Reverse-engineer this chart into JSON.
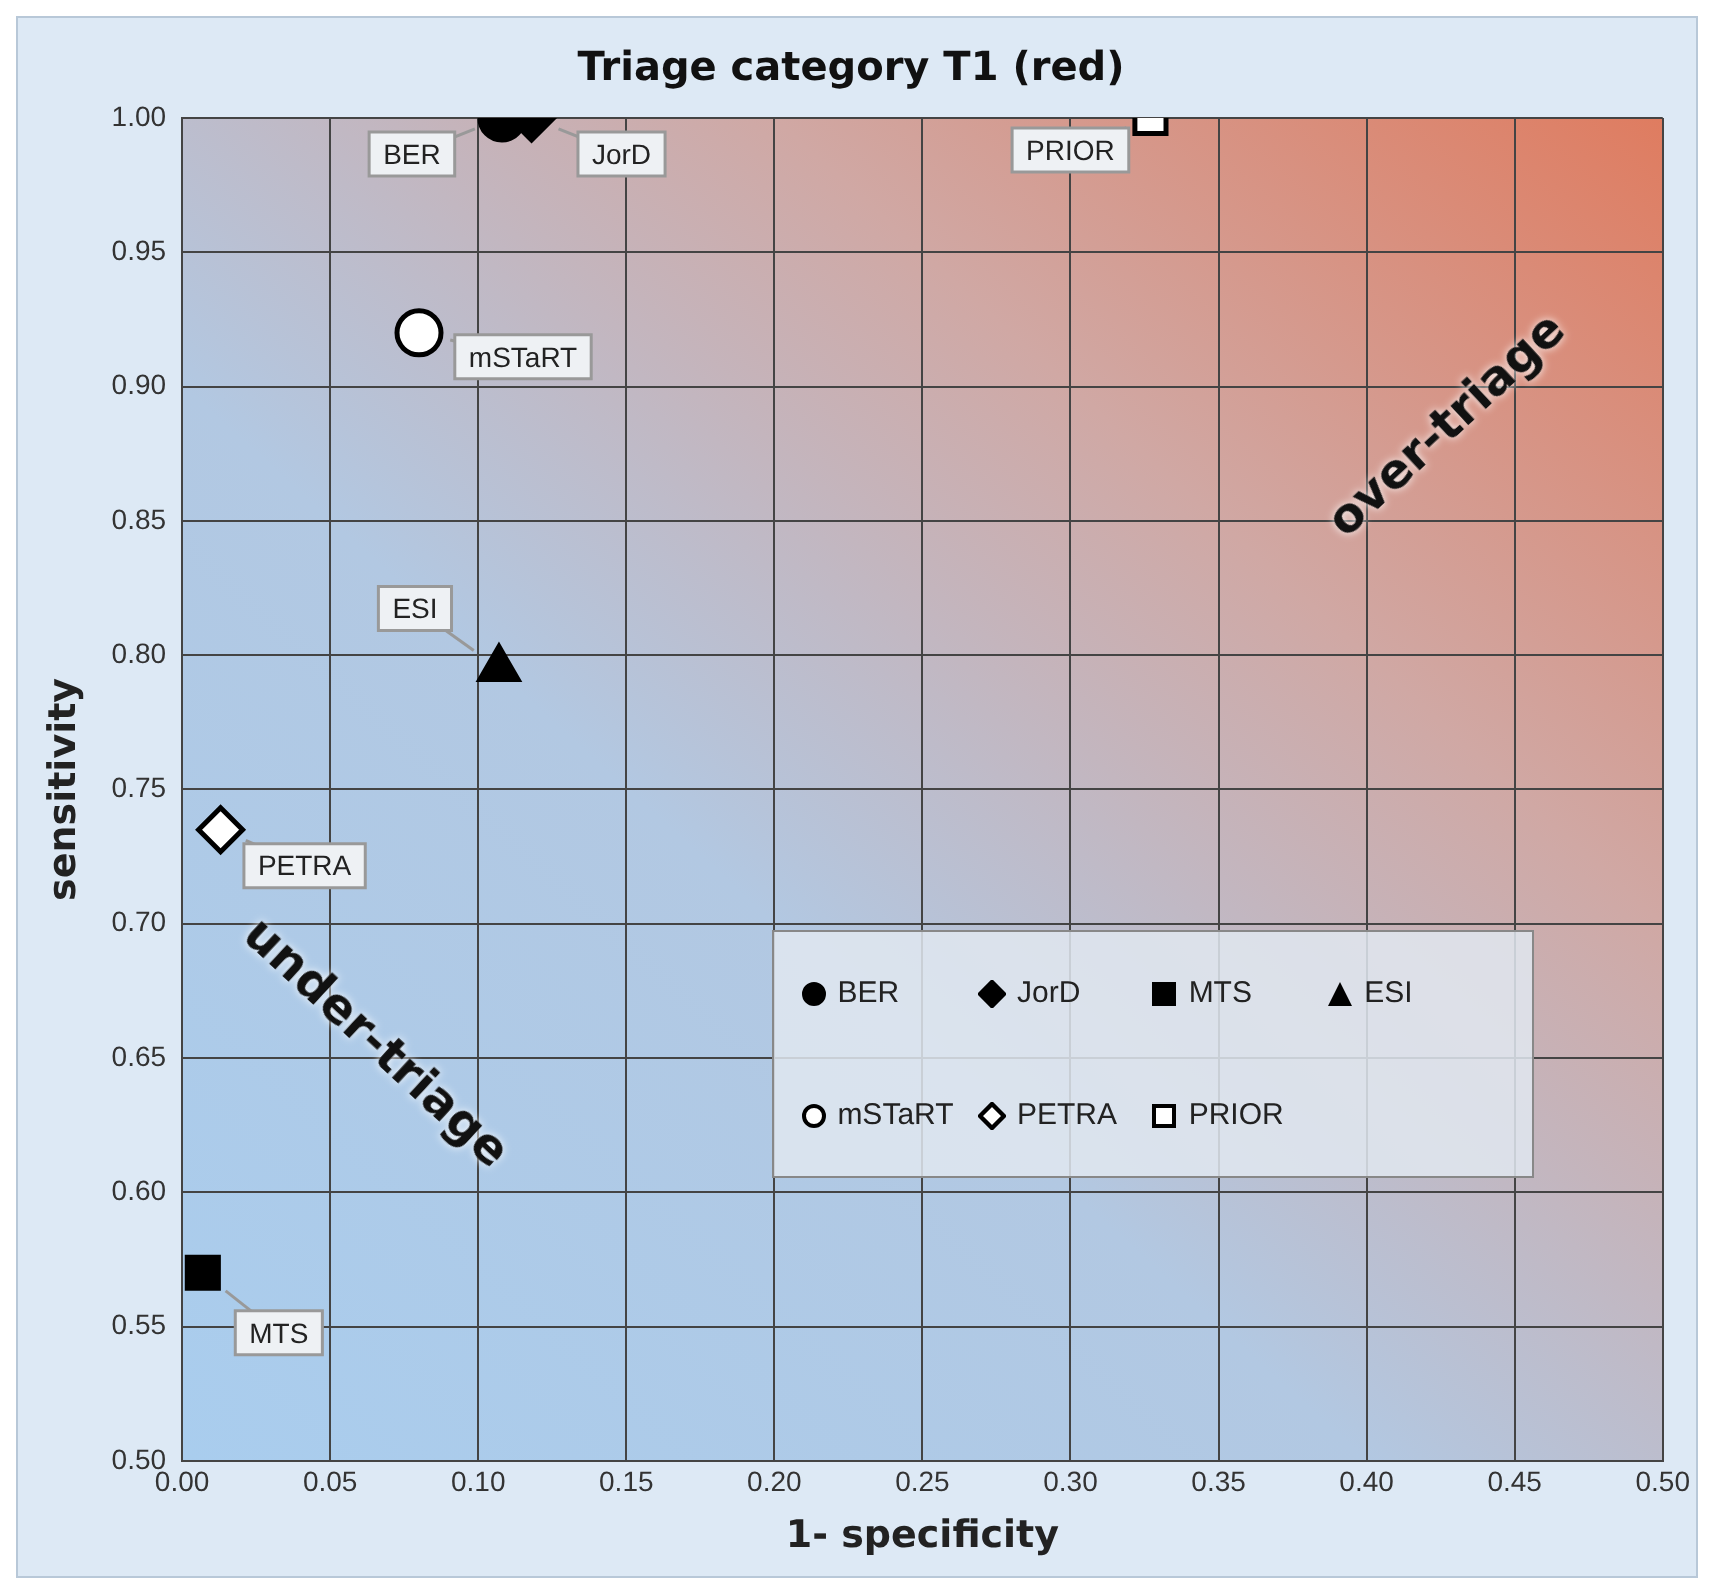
{
  "chart_data": {
    "type": "scatter",
    "title": "Triage category T1 (red)",
    "xlabel": "1- specificity",
    "ylabel": "sensitivity",
    "xlim": [
      0,
      0.5
    ],
    "ylim": [
      0.5,
      1.0
    ],
    "xticks": [
      {
        "value": 0,
        "label": "0.00"
      },
      {
        "value": 0.05,
        "label": "0.05"
      },
      {
        "value": 0.1,
        "label": "0.10"
      },
      {
        "value": 0.15,
        "label": "0.15"
      },
      {
        "value": 0.2,
        "label": "0.20"
      },
      {
        "value": 0.25,
        "label": "0.25"
      },
      {
        "value": 0.3,
        "label": "0.30"
      },
      {
        "value": 0.35,
        "label": "0.35"
      },
      {
        "value": 0.4,
        "label": "0.40"
      },
      {
        "value": 0.45,
        "label": "0.45"
      },
      {
        "value": 0.5,
        "label": "0.50"
      }
    ],
    "yticks": [
      {
        "value": 0.5,
        "label": "0.50"
      },
      {
        "value": 0.55,
        "label": "0.55"
      },
      {
        "value": 0.6,
        "label": "0.60"
      },
      {
        "value": 0.65,
        "label": "0.65"
      },
      {
        "value": 0.7,
        "label": "0.70"
      },
      {
        "value": 0.75,
        "label": "0.75"
      },
      {
        "value": 0.8,
        "label": "0.80"
      },
      {
        "value": 0.85,
        "label": "0.85"
      },
      {
        "value": 0.9,
        "label": "0.90"
      },
      {
        "value": 0.95,
        "label": "0.95"
      },
      {
        "value": 1.0,
        "label": "1.00"
      }
    ],
    "grid": true,
    "legend": "bottom right",
    "series": [
      {
        "name": "BER",
        "color": "#000000",
        "marker": "circle",
        "x": [
          0.108
        ],
        "values": [
          1.0
        ]
      },
      {
        "name": "JorD",
        "color": "#000000",
        "marker": "diamond",
        "x": [
          0.118
        ],
        "values": [
          1.0
        ]
      },
      {
        "name": "MTS",
        "color": "#000000",
        "marker": "square",
        "x": [
          0.007
        ],
        "values": [
          0.57
        ]
      },
      {
        "name": "ESI",
        "color": "#000000",
        "marker": "triangle",
        "x": [
          0.107
        ],
        "values": [
          0.795
        ]
      },
      {
        "name": "mSTaRT",
        "color": "#ffffff",
        "marker": "circle",
        "x": [
          0.08
        ],
        "values": [
          0.92
        ]
      },
      {
        "name": "PETRA",
        "color": "#ffffff",
        "marker": "diamond",
        "x": [
          0.013
        ],
        "values": [
          0.735
        ]
      },
      {
        "name": "PRIOR",
        "color": "#ffffff",
        "marker": "square",
        "x": [
          0.327
        ],
        "values": [
          1.0
        ]
      }
    ],
    "annotations": [
      "over-triage",
      "under-triage"
    ]
  }
}
